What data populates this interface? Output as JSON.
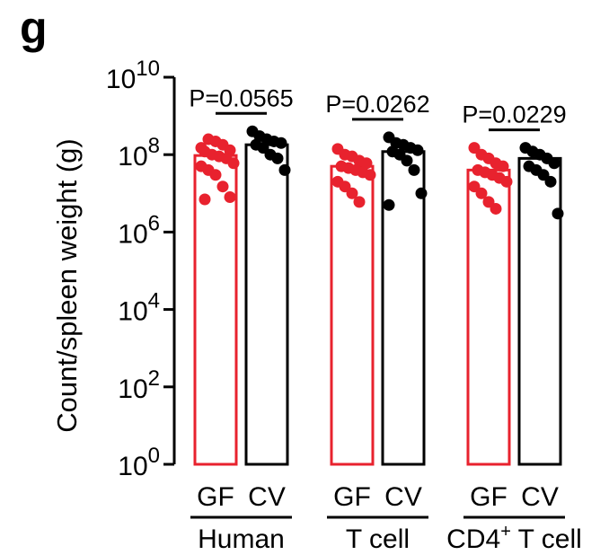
{
  "panel_label": "g",
  "chart_data": {
    "type": "bar",
    "ylabel": "Count/spleen weight (g)",
    "yscale": "log10",
    "ylim": [
      1,
      10000000000
    ],
    "yticks": [
      {
        "base": "10",
        "exp": "0",
        "value": 1
      },
      {
        "base": "10",
        "exp": "2",
        "value": 100
      },
      {
        "base": "10",
        "exp": "4",
        "value": 10000
      },
      {
        "base": "10",
        "exp": "6",
        "value": 1000000
      },
      {
        "base": "10",
        "exp": "8",
        "value": 100000000
      },
      {
        "base": "10",
        "exp": "10",
        "value": 10000000000
      }
    ],
    "colors": {
      "GF": "#e8222e",
      "CV": "#000000"
    },
    "groups": [
      {
        "name": "Human",
        "name_sup": "",
        "name_rest": "",
        "pvalue": "P=0.0565",
        "bars": [
          {
            "label": "GF",
            "mean": 95000000,
            "points": [
              150000000,
              250000000,
              220000000,
              180000000,
              130000000,
              120000000,
              100000000,
              90000000,
              80000000,
              60000000,
              50000000,
              40000000,
              30000000,
              15000000,
              8000000,
              7000000
            ]
          },
          {
            "label": "CV",
            "mean": 180000000,
            "points": [
              400000000,
              300000000,
              250000000,
              220000000,
              200000000,
              180000000,
              150000000,
              100000000,
              80000000,
              40000000
            ]
          }
        ]
      },
      {
        "name": "T cell",
        "name_sup": "",
        "name_rest": "",
        "pvalue": "P=0.0262",
        "bars": [
          {
            "label": "GF",
            "mean": 50000000,
            "points": [
              140000000,
              100000000,
              90000000,
              70000000,
              60000000,
              50000000,
              45000000,
              40000000,
              35000000,
              30000000,
              20000000,
              15000000,
              10000000,
              6000000
            ]
          },
          {
            "label": "CV",
            "mean": 120000000,
            "points": [
              280000000,
              200000000,
              180000000,
              150000000,
              130000000,
              120000000,
              100000000,
              70000000,
              40000000,
              10000000,
              5000000
            ]
          }
        ]
      },
      {
        "name": "CD4",
        "name_sup": "+",
        "name_rest": " T cell",
        "pvalue": "P=0.0229",
        "bars": [
          {
            "label": "GF",
            "mean": 40000000,
            "points": [
              150000000,
              100000000,
              80000000,
              60000000,
              50000000,
              40000000,
              35000000,
              30000000,
              25000000,
              20000000,
              15000000,
              10000000,
              6000000,
              4000000
            ]
          },
          {
            "label": "CV",
            "mean": 80000000,
            "points": [
              150000000,
              120000000,
              100000000,
              80000000,
              60000000,
              50000000,
              40000000,
              30000000,
              20000000,
              3000000
            ]
          }
        ]
      }
    ]
  }
}
